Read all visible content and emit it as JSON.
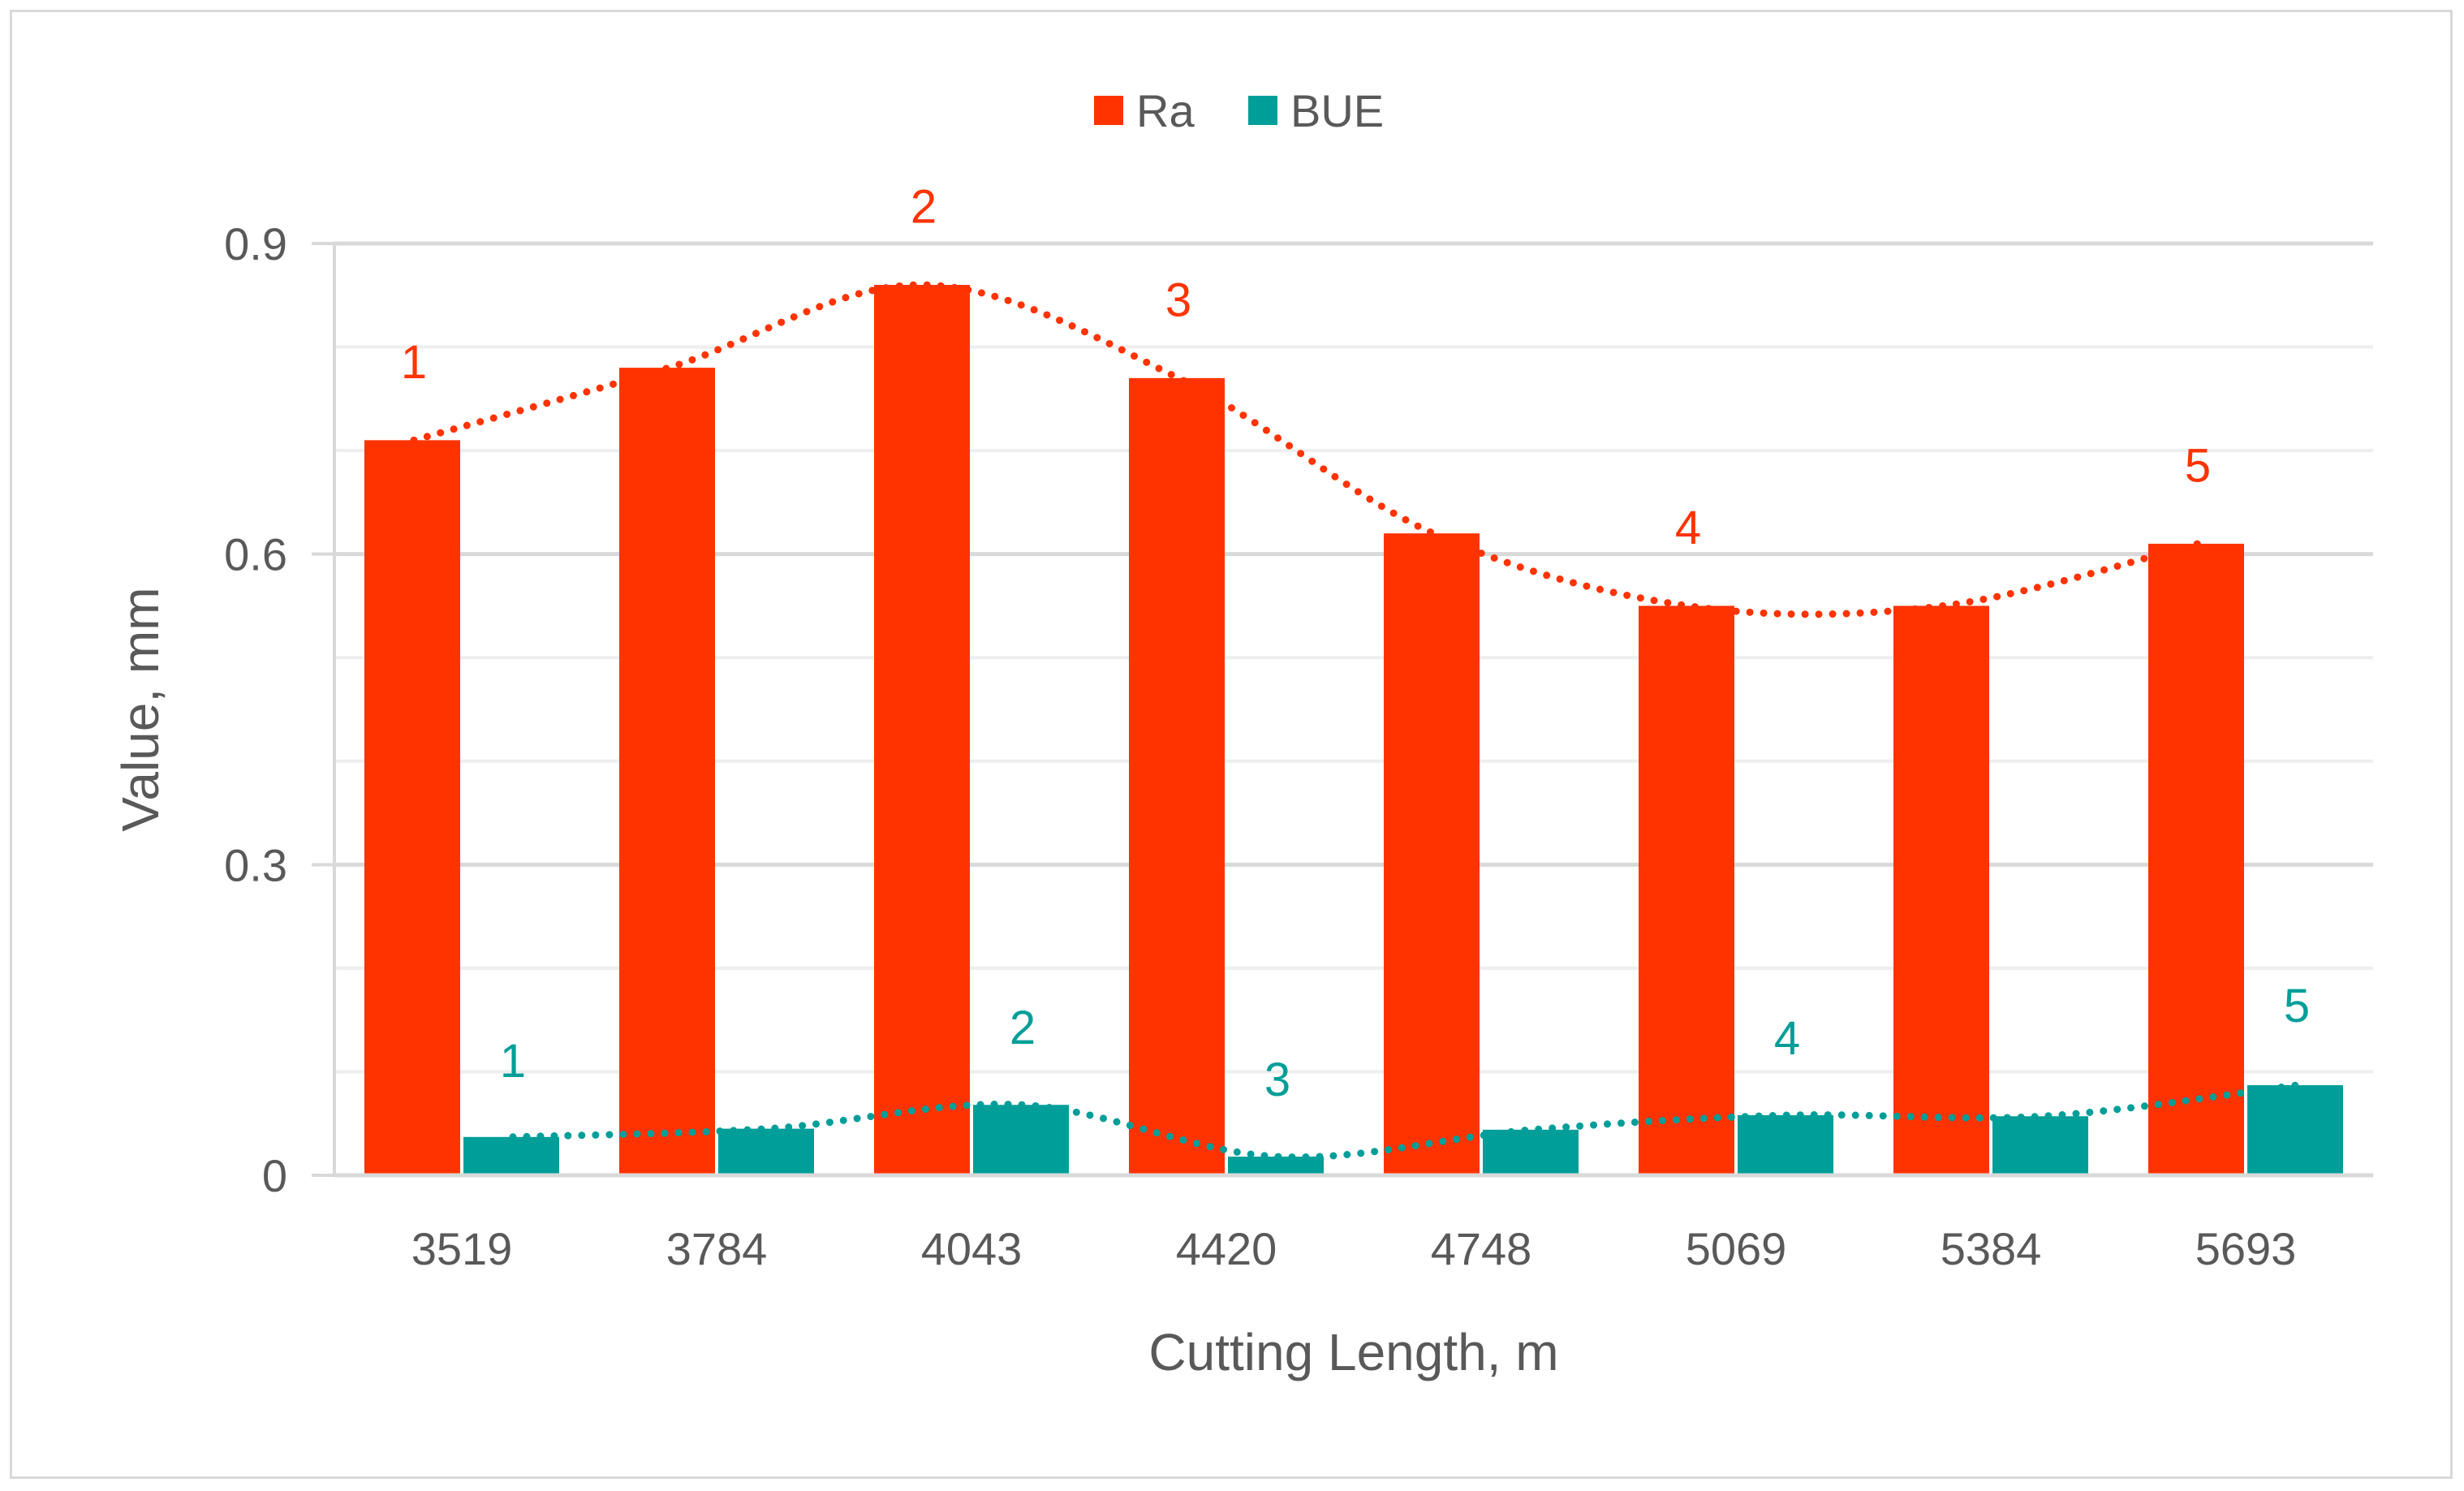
{
  "chart_data": {
    "type": "bar",
    "title": "",
    "xlabel": "Cutting Length, m",
    "ylabel": "Value, mm",
    "categories": [
      "3519",
      "3784",
      "4043",
      "4420",
      "4748",
      "5069",
      "5384",
      "5693"
    ],
    "series": [
      {
        "name": "Ra",
        "color": "#ff3300",
        "values": [
          0.71,
          0.78,
          0.86,
          0.77,
          0.62,
          0.55,
          0.55,
          0.61
        ]
      },
      {
        "name": "BUE",
        "color": "#009e99",
        "values": [
          0.037,
          0.045,
          0.068,
          0.018,
          0.044,
          0.058,
          0.057,
          0.087
        ]
      }
    ],
    "ylim": [
      0,
      0.9
    ],
    "yticks": [
      "0",
      "0.3",
      "0.6",
      "0.9"
    ],
    "grid": "horizontal",
    "legend": "top-center",
    "trendline": "dotted polynomial per series",
    "annotations": {
      "Ra": [
        {
          "label": "1",
          "category": "3519",
          "y": 0.77
        },
        {
          "label": "2",
          "category": "4043",
          "y": 0.92
        },
        {
          "label": "3",
          "category": "4420",
          "y": 0.83
        },
        {
          "label": "4",
          "category": "5069",
          "y": 0.61
        },
        {
          "label": "5",
          "category": "5693",
          "y": 0.67
        }
      ],
      "BUE": [
        {
          "label": "1",
          "category": "3519",
          "y": 0.095
        },
        {
          "label": "2",
          "category": "4043",
          "y": 0.127
        },
        {
          "label": "3",
          "category": "4420",
          "y": 0.077
        },
        {
          "label": "4",
          "category": "5069",
          "y": 0.117
        },
        {
          "label": "5",
          "category": "5693",
          "y": 0.148
        }
      ]
    }
  }
}
